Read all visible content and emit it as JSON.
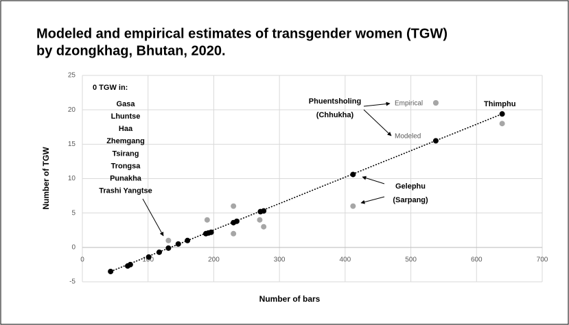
{
  "chart_data": {
    "type": "scatter",
    "title": [
      "Modeled and empirical estimates of transgender women (TGW)",
      "by dzongkhag, Bhutan, 2020."
    ],
    "x_label": "Number of bars",
    "y_label": "Number of TGW",
    "xlim": [
      0,
      700
    ],
    "xticks": [
      0,
      100,
      200,
      300,
      400,
      500,
      600,
      700
    ],
    "ylim": [
      -5,
      25
    ],
    "yticks": [
      -5,
      0,
      5,
      10,
      15,
      20,
      25
    ],
    "grid": true,
    "series": [
      {
        "name": "Modeled",
        "color": "#000000",
        "x": [
          43,
          69,
          73,
          101,
          117,
          131,
          146,
          160,
          188,
          192,
          196,
          230,
          235,
          271,
          276,
          412,
          538,
          639
        ],
        "values": [
          -3.5,
          -2.7,
          -2.5,
          -1.4,
          -0.7,
          -0.1,
          0.5,
          1,
          2,
          2.1,
          2.2,
          3.6,
          3.8,
          5.2,
          5.3,
          10.6,
          15.5,
          19.4
        ]
      },
      {
        "name": "Empirical",
        "color": "#a6a6a6",
        "x": [
          131,
          190,
          230,
          230,
          270,
          276,
          412,
          538,
          639
        ],
        "values": [
          1,
          4,
          6,
          2,
          4,
          3,
          6,
          21,
          18
        ]
      }
    ],
    "annotations": {
      "zero_heading": "0 TGW  in:",
      "zero_list": [
        "Gasa",
        "Lhuntse",
        "Haa",
        "Zhemgang",
        "Tsirang",
        "Trongsa",
        "Punakha",
        "Trashi Yangtse"
      ],
      "phuentsholing": [
        "Phuentsholing",
        "(Chhukha)"
      ],
      "thimphu": "Thimphu",
      "gelephu": [
        "Gelephu",
        "(Sarpang)"
      ]
    }
  }
}
